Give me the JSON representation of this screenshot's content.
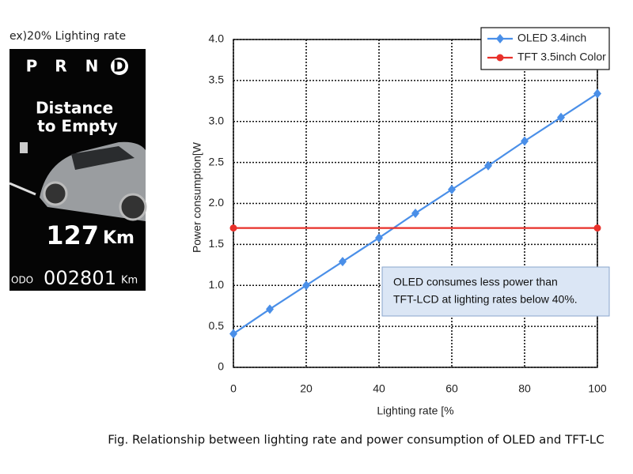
{
  "dashboard": {
    "label": "ex)20% Lighting rate",
    "gears": [
      "P",
      "R",
      "N",
      "D"
    ],
    "heading": [
      "Distance",
      "to Empty"
    ],
    "distance": "127",
    "distance_unit": "Km",
    "odo_label": "ODO",
    "odo": "002801",
    "odo_unit": "Km"
  },
  "chart_data": {
    "type": "line",
    "xlabel": "Lighting rate [%",
    "ylabel": "Power consumption[W",
    "caption": "Fig. Relationship between lighting rate and power consumption of OLED and TFT-LC",
    "annotation": [
      "OLED consumes less power than",
      "TFT-LCD at lighting rates below 40%."
    ],
    "series": [
      {
        "name": "OLED 3.4inch",
        "color": "#4a8fe8",
        "marker": "diamond",
        "x": [
          0,
          10,
          20,
          30,
          40,
          50,
          60,
          70,
          80,
          90,
          100
        ],
        "values": [
          0.41,
          0.71,
          1.0,
          1.29,
          1.58,
          1.88,
          2.17,
          2.46,
          2.76,
          3.05,
          3.34
        ]
      },
      {
        "name": "TFT 3.5inch Color",
        "color": "#e8302a",
        "marker": "circle",
        "x": [
          0,
          100
        ],
        "values": [
          1.7,
          1.7
        ]
      }
    ],
    "xlim": [
      0,
      100
    ],
    "xticks": [
      0,
      20,
      40,
      60,
      80,
      100
    ],
    "ylim": [
      0,
      4
    ],
    "yticks": [
      0,
      {
        "value": 0.5,
        "label": "0.5"
      },
      {
        "value": 1,
        "label": "1.0"
      },
      {
        "value": 1.5,
        "label": "1.5"
      },
      {
        "value": 2,
        "label": "2.0"
      },
      {
        "value": 2.5,
        "label": "2.5"
      },
      {
        "value": 3,
        "label": "3.0"
      },
      {
        "value": 3.5,
        "label": "3.5"
      },
      {
        "value": 4,
        "label": "4.0"
      }
    ],
    "grid": true,
    "legend": "top-right"
  }
}
